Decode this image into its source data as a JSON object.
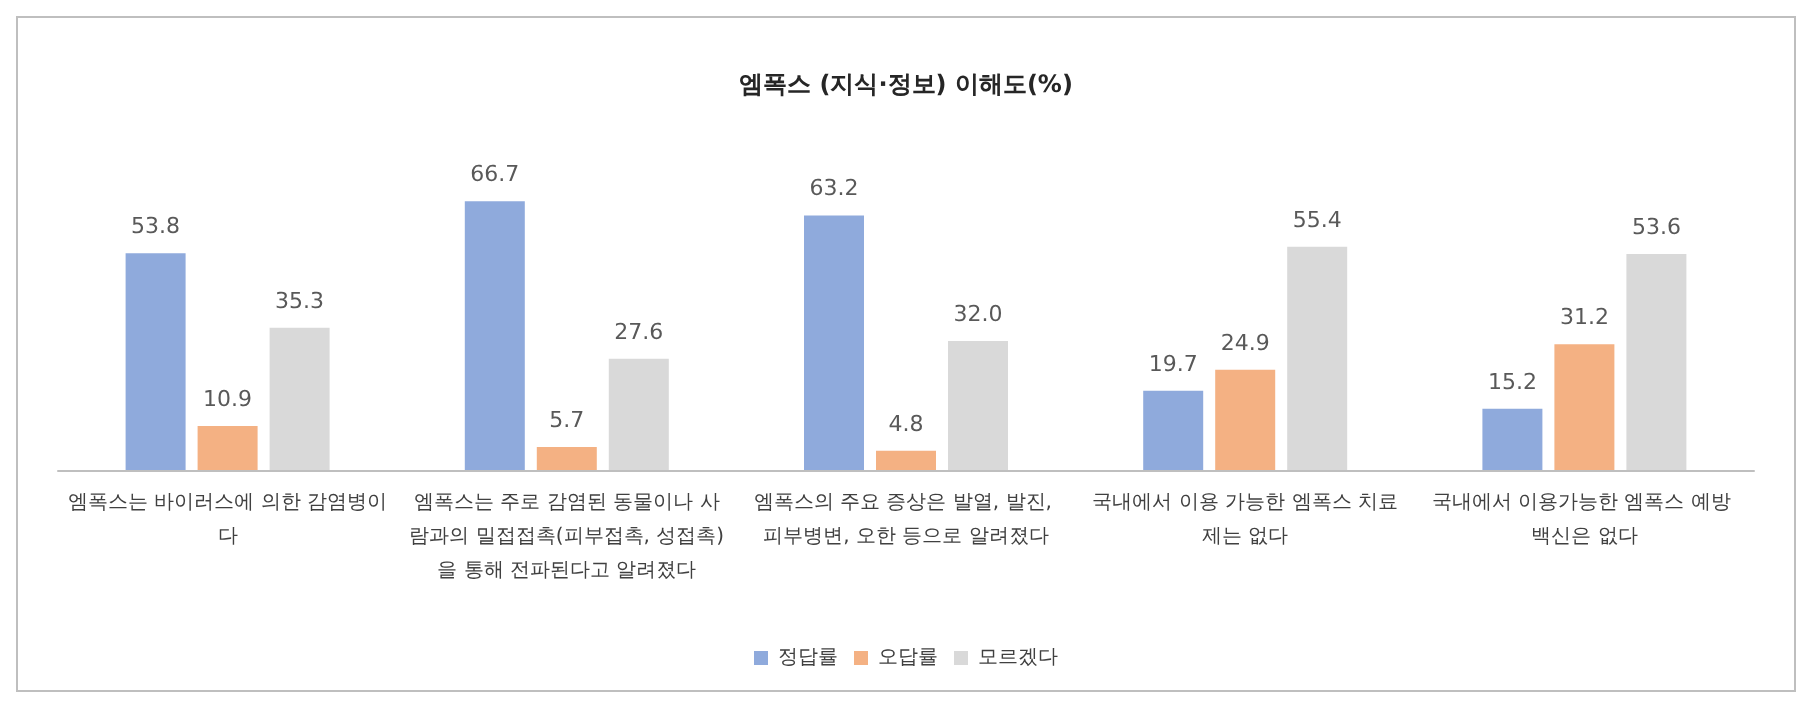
{
  "chart_data": {
    "type": "bar",
    "title": "엠폭스 (지식·정보) 이해도(%)",
    "categories": [
      "엠폭스는 바이러스에 의한 감염병이다",
      "엠폭스는 주로 감염된 동물이나 사람과의 밀접접촉(피부접촉, 성접촉)을 통해 전파된다고 알려졌다",
      "엠폭스의 주요 증상은 발열, 발진, 피부병변, 오한 등으로 알려졌다",
      "국내에서 이용 가능한 엠폭스 치료제는 없다",
      "국내에서 이용가능한 엠폭스 예방 백신은 없다"
    ],
    "series": [
      {
        "name": "정답률",
        "color": "#8faadc",
        "values": [
          53.8,
          66.7,
          63.2,
          19.7,
          15.2
        ],
        "value_labels": [
          "53.8",
          "66.7",
          "63.2",
          "19.7",
          "15.2"
        ]
      },
      {
        "name": "오답률",
        "color": "#f4b183",
        "values": [
          10.9,
          5.7,
          4.8,
          24.9,
          31.2
        ],
        "value_labels": [
          "10.9",
          "5.7",
          "4.8",
          "24.9",
          "31.2"
        ]
      },
      {
        "name": "모르겠다",
        "color": "#d9d9d9",
        "values": [
          35.3,
          27.6,
          32.0,
          55.4,
          53.6
        ],
        "value_labels": [
          "35.3",
          "27.6",
          "32.0",
          "55.4",
          "53.6"
        ]
      }
    ],
    "legend": "bottom"
  }
}
